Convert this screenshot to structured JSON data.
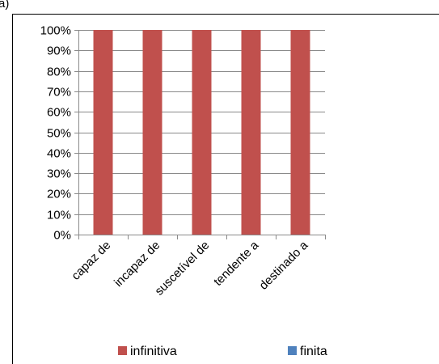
{
  "top_fragment": "a)",
  "chart_data": {
    "type": "bar",
    "stacked": true,
    "percent": true,
    "categories": [
      "capaz de",
      "incapaz de",
      "suscetível de",
      "tendente a",
      "destinado a"
    ],
    "series": [
      {
        "name": "infinitiva",
        "color": "#c0504d",
        "values": [
          100,
          100,
          100,
          100,
          100
        ]
      },
      {
        "name": "finita",
        "color": "#4f81bd",
        "values": [
          0,
          0,
          0,
          0,
          0
        ]
      }
    ],
    "y_ticks": [
      "0%",
      "10%",
      "20%",
      "30%",
      "40%",
      "50%",
      "60%",
      "70%",
      "80%",
      "90%",
      "100%"
    ],
    "ylim": [
      0,
      100
    ],
    "grid": true,
    "legend_position": "bottom"
  }
}
